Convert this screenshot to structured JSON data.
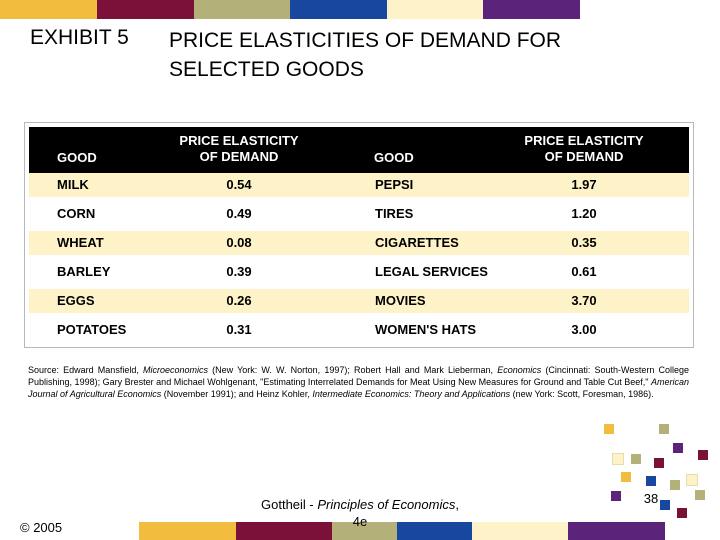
{
  "header": {
    "exhibit_label": "EXHIBIT 5",
    "title_line1": "PRICE ELASTICITIES OF DEMAND FOR",
    "title_line2": "SELECTED GOODS"
  },
  "table": {
    "headers": {
      "good_left": "GOOD",
      "elasticity_left_line1": "PRICE ELASTICITY",
      "elasticity_left_line2": "OF DEMAND",
      "good_right": "GOOD",
      "elasticity_right_line1": "PRICE ELASTICITY",
      "elasticity_right_line2": "OF DEMAND"
    },
    "rows": [
      {
        "good_a": "MILK",
        "value_a": "0.54",
        "good_b": "PEPSI",
        "value_b": "1.97"
      },
      {
        "good_a": "CORN",
        "value_a": "0.49",
        "good_b": "TIRES",
        "value_b": "1.20"
      },
      {
        "good_a": "WHEAT",
        "value_a": "0.08",
        "good_b": "CIGARETTES",
        "value_b": "0.35"
      },
      {
        "good_a": "BARLEY",
        "value_a": "0.39",
        "good_b": "LEGAL SERVICES",
        "value_b": "0.61"
      },
      {
        "good_a": "EGGS",
        "value_a": "0.26",
        "good_b": "MOVIES",
        "value_b": "3.70"
      },
      {
        "good_a": "POTATOES",
        "value_a": "0.31",
        "good_b": "WOMEN'S HATS",
        "value_b": "3.00"
      }
    ]
  },
  "source": {
    "label": "Source:",
    "t1": " Edward Mansfield, ",
    "i1": "Microeconomics",
    "t2": " (New York: W. W. Norton, 1997); Robert Hall and Mark Lieberman, ",
    "i2": "Economics",
    "t3": " (Cincinnati: South-Western College Publishing, 1998); Gary Brester and Michael Wohlgenant, \"Estimating Interrelated Demands for Meat Using New Measures for Ground and Table Cut Beef,\" ",
    "i3": "American Journal of Agricultural Economics",
    "t4": " (November 1991); and Heinz Kohler, ",
    "i4": "Intermediate Economics: Theory and Applications",
    "t5": " (new York: Scott, Foresman, 1986)."
  },
  "footer": {
    "copyright": "© 2005",
    "author": "Gottheil - ",
    "book_title": "Principles of Economics",
    "book_suffix": ",",
    "edition": "4e",
    "page_number": "38"
  },
  "colors": {
    "gold": "#f2bc3e",
    "maroon": "#7b1038",
    "olive": "#b3b07a",
    "blue": "#17479e",
    "cream": "#fef3c8",
    "purple": "#5b2379"
  }
}
